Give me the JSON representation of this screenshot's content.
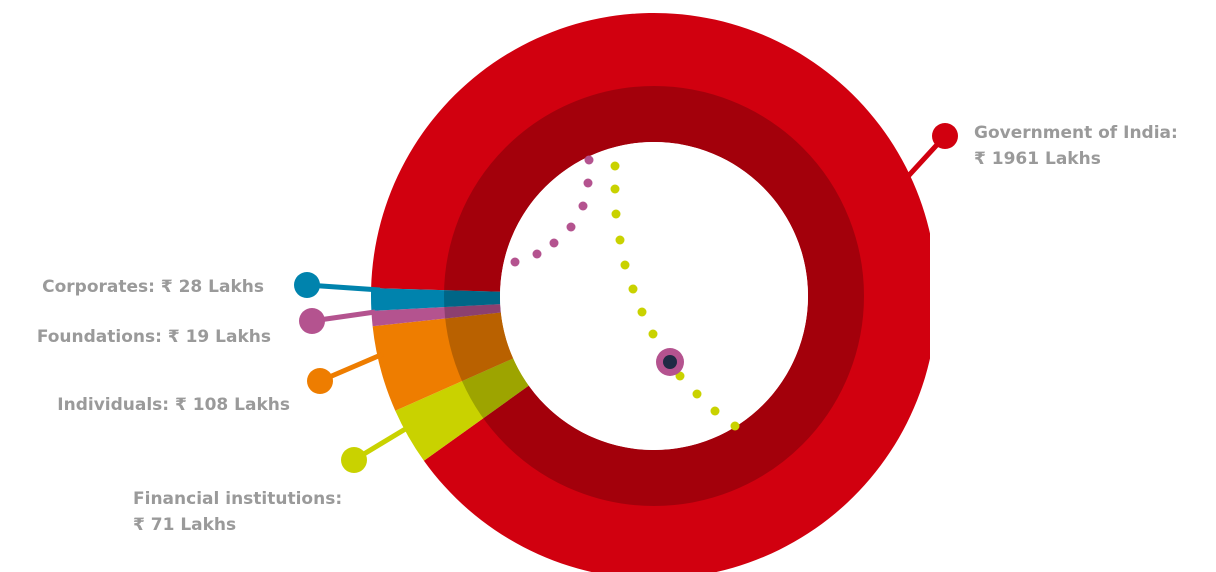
{
  "chart_data": {
    "type": "pie",
    "currency_symbol": "₹",
    "unit": "Lakhs",
    "slices": [
      {
        "name": "Government of India:",
        "value": 1961,
        "color": "#d1000f"
      },
      {
        "name": "Financial institutions:",
        "value": 71,
        "color": "#c9d200"
      },
      {
        "name": "Individuals:",
        "value": 108,
        "color": "#ee7d00"
      },
      {
        "name": "Foundations:",
        "value": 19,
        "color": "#b4538f"
      },
      {
        "name": "Corporates:",
        "value": 28,
        "color": "#0083ad"
      }
    ],
    "labels": {
      "government": {
        "line1": "Government of India:",
        "line2": "₹ 1961 Lakhs"
      },
      "financial": {
        "line1": "Financial institutions:",
        "line2": "₹ 71 Lakhs"
      },
      "individuals": "Individuals: ₹ 108 Lakhs",
      "foundations": "Foundations: ₹ 19 Lakhs",
      "corporates": "Corporates: ₹ 28 Lakhs"
    }
  }
}
